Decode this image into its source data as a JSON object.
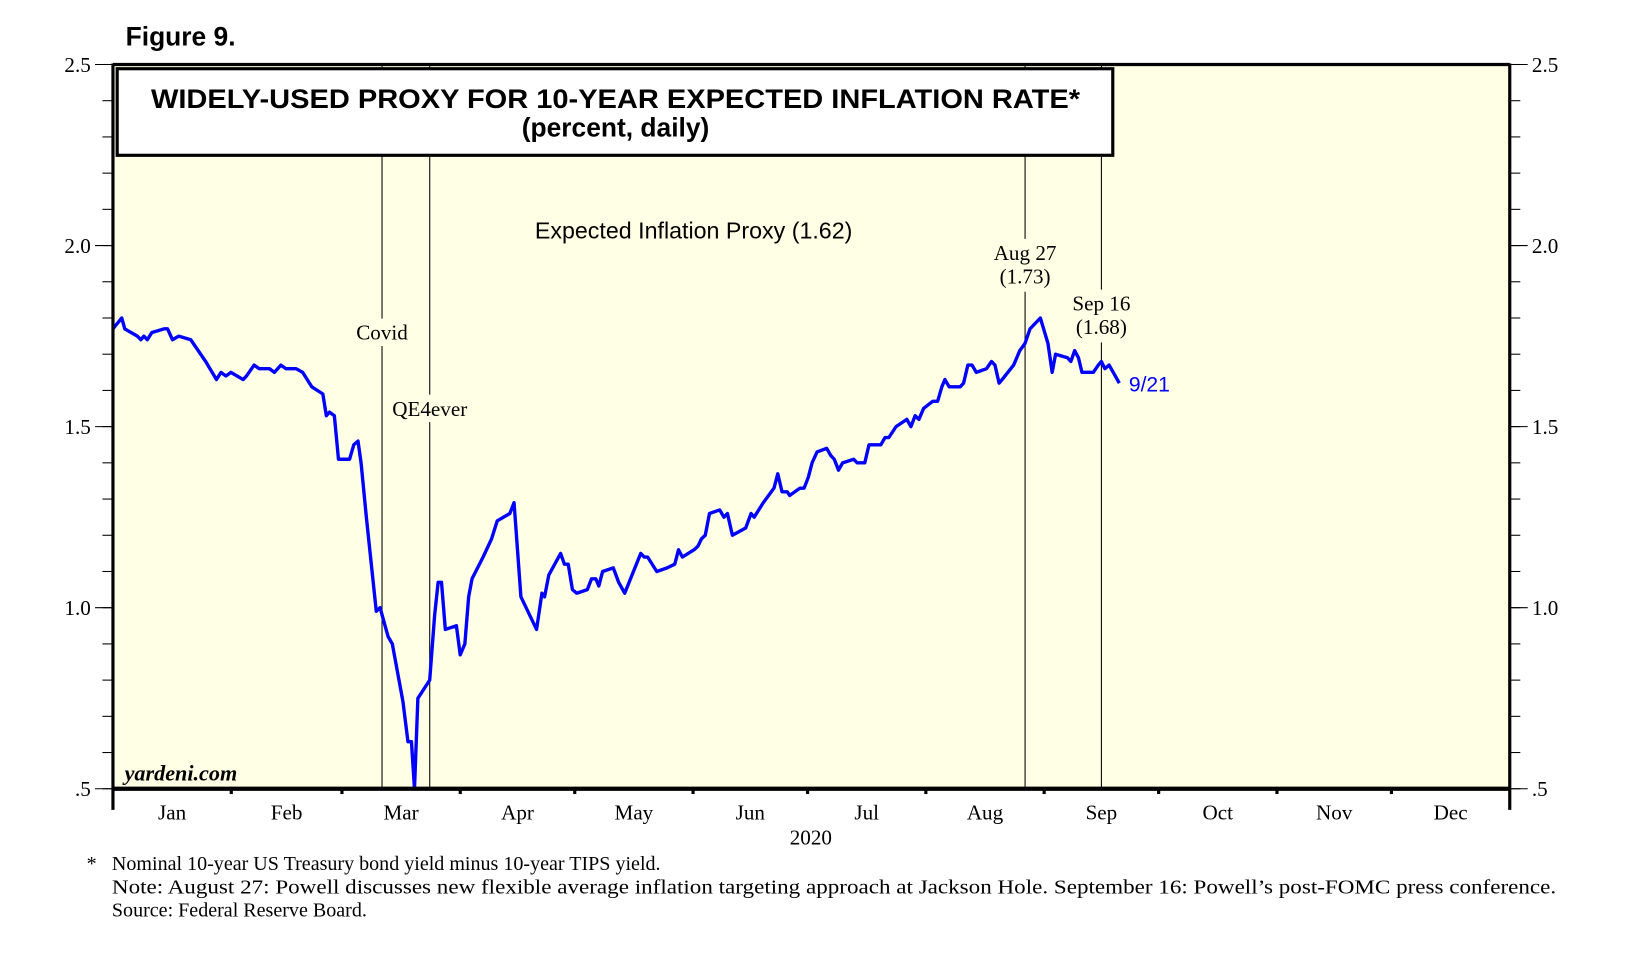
{
  "figure_label": "Figure 9.",
  "watermark": "yardeni.com",
  "chart_data": {
    "type": "line",
    "title": "WIDELY-USED PROXY FOR 10-YEAR EXPECTED INFLATION RATE*",
    "subtitle": "(percent, daily)",
    "xlabel": "2020",
    "ylabel": "",
    "x_unit": "day of year 2020 (0 = Jan 1)",
    "xlim": [
      0,
      366
    ],
    "ylim": [
      0.5,
      2.5
    ],
    "grid": false,
    "yticks": [
      {
        "value": 2.5,
        "label": "2.5"
      },
      {
        "value": 2.0,
        "label": "2.0"
      },
      {
        "value": 1.5,
        "label": "1.5"
      },
      {
        "value": 1.0,
        "label": "1.0"
      },
      {
        "value": 0.5,
        "label": ".5"
      }
    ],
    "yminor_step": 0.1,
    "months": [
      {
        "label": "Jan",
        "start": 0,
        "end": 31
      },
      {
        "label": "Feb",
        "start": 31,
        "end": 60
      },
      {
        "label": "Mar",
        "start": 60,
        "end": 91
      },
      {
        "label": "Apr",
        "start": 91,
        "end": 121
      },
      {
        "label": "May",
        "start": 121,
        "end": 152
      },
      {
        "label": "Jun",
        "start": 152,
        "end": 182
      },
      {
        "label": "Jul",
        "start": 182,
        "end": 213
      },
      {
        "label": "Aug",
        "start": 213,
        "end": 244
      },
      {
        "label": "Sep",
        "start": 244,
        "end": 274
      },
      {
        "label": "Oct",
        "start": 274,
        "end": 305
      },
      {
        "label": "Nov",
        "start": 305,
        "end": 335
      },
      {
        "label": "Dec",
        "start": 335,
        "end": 366
      }
    ],
    "series": [
      {
        "name": "Expected Inflation Proxy (1.62)",
        "color": "#0000FF",
        "end_label": "9/21",
        "points": [
          [
            0,
            1.77
          ],
          [
            2.3,
            1.8
          ],
          [
            3.1,
            1.77
          ],
          [
            6.4,
            1.75
          ],
          [
            7.3,
            1.74
          ],
          [
            8.1,
            1.75
          ],
          [
            9.0,
            1.74
          ],
          [
            10.2,
            1.76
          ],
          [
            13.4,
            1.77
          ],
          [
            14.3,
            1.77
          ],
          [
            15.6,
            1.74
          ],
          [
            17.2,
            1.75
          ],
          [
            20.4,
            1.74
          ],
          [
            24.3,
            1.68
          ],
          [
            27.1,
            1.63
          ],
          [
            28.3,
            1.65
          ],
          [
            29.6,
            1.64
          ],
          [
            30.9,
            1.65
          ],
          [
            34.1,
            1.63
          ],
          [
            35.0,
            1.64
          ],
          [
            37.0,
            1.67
          ],
          [
            38.3,
            1.66
          ],
          [
            41.0,
            1.66
          ],
          [
            42.3,
            1.65
          ],
          [
            44.0,
            1.67
          ],
          [
            45.3,
            1.66
          ],
          [
            48.0,
            1.66
          ],
          [
            49.7,
            1.65
          ],
          [
            52.1,
            1.61
          ],
          [
            55.0,
            1.59
          ],
          [
            55.9,
            1.53
          ],
          [
            56.7,
            1.54
          ],
          [
            58.0,
            1.53
          ],
          [
            59.1,
            1.41
          ],
          [
            62.0,
            1.41
          ],
          [
            63.1,
            1.45
          ],
          [
            64.2,
            1.46
          ],
          [
            65.0,
            1.4
          ],
          [
            66.4,
            1.25
          ],
          [
            69.0,
            0.99
          ],
          [
            70.0,
            1.0
          ],
          [
            72.1,
            0.92
          ],
          [
            73.2,
            0.9
          ],
          [
            76.0,
            0.74
          ],
          [
            77.3,
            0.63
          ],
          [
            78.2,
            0.63
          ],
          [
            79.0,
            0.5
          ],
          [
            79.9,
            0.75
          ],
          [
            83.0,
            0.8
          ],
          [
            84.3,
            0.98
          ],
          [
            85.2,
            1.07
          ],
          [
            86.1,
            1.07
          ],
          [
            87.1,
            0.94
          ],
          [
            90.0,
            0.95
          ],
          [
            91.0,
            0.87
          ],
          [
            92.2,
            0.9
          ],
          [
            93.2,
            1.03
          ],
          [
            94.1,
            1.08
          ],
          [
            97.0,
            1.14
          ],
          [
            99.2,
            1.19
          ],
          [
            100.7,
            1.24
          ],
          [
            104.0,
            1.26
          ],
          [
            105.1,
            1.29
          ],
          [
            106.9,
            1.03
          ],
          [
            111.0,
            0.94
          ],
          [
            112.4,
            1.04
          ],
          [
            113.1,
            1.03
          ],
          [
            114.2,
            1.09
          ],
          [
            117.3,
            1.15
          ],
          [
            118.3,
            1.12
          ],
          [
            119.3,
            1.12
          ],
          [
            120.4,
            1.05
          ],
          [
            121.5,
            1.04
          ],
          [
            124.3,
            1.05
          ],
          [
            125.4,
            1.08
          ],
          [
            126.5,
            1.08
          ],
          [
            127.3,
            1.06
          ],
          [
            128.3,
            1.1
          ],
          [
            131.1,
            1.11
          ],
          [
            132.5,
            1.07
          ],
          [
            134.1,
            1.04
          ],
          [
            138.3,
            1.15
          ],
          [
            139.2,
            1.14
          ],
          [
            140.1,
            1.14
          ],
          [
            142.5,
            1.1
          ],
          [
            145.2,
            1.11
          ],
          [
            147.2,
            1.12
          ],
          [
            148.2,
            1.16
          ],
          [
            149.2,
            1.14
          ],
          [
            152.3,
            1.16
          ],
          [
            153.3,
            1.17
          ],
          [
            154.2,
            1.19
          ],
          [
            155.2,
            1.2
          ],
          [
            156.3,
            1.26
          ],
          [
            159.0,
            1.27
          ],
          [
            160.1,
            1.25
          ],
          [
            161.0,
            1.26
          ],
          [
            162.3,
            1.2
          ],
          [
            165.8,
            1.22
          ],
          [
            167.2,
            1.26
          ],
          [
            168.0,
            1.25
          ],
          [
            170.4,
            1.29
          ],
          [
            173.2,
            1.33
          ],
          [
            174.2,
            1.37
          ],
          [
            175.3,
            1.32
          ],
          [
            176.7,
            1.32
          ],
          [
            177.3,
            1.31
          ],
          [
            180.0,
            1.33
          ],
          [
            181.1,
            1.33
          ],
          [
            182.2,
            1.36
          ],
          [
            183.2,
            1.4
          ],
          [
            184.5,
            1.43
          ],
          [
            187.0,
            1.44
          ],
          [
            188.1,
            1.42
          ],
          [
            189.0,
            1.41
          ],
          [
            190.1,
            1.38
          ],
          [
            191.2,
            1.4
          ],
          [
            194.1,
            1.41
          ],
          [
            195.0,
            1.4
          ],
          [
            197.0,
            1.4
          ],
          [
            198.1,
            1.45
          ],
          [
            201.2,
            1.45
          ],
          [
            202.3,
            1.47
          ],
          [
            203.3,
            1.47
          ],
          [
            205.2,
            1.5
          ],
          [
            208.0,
            1.52
          ],
          [
            209.1,
            1.5
          ],
          [
            210.2,
            1.53
          ],
          [
            211.2,
            1.52
          ],
          [
            212.4,
            1.55
          ],
          [
            214.8,
            1.57
          ],
          [
            216.1,
            1.57
          ],
          [
            217.2,
            1.61
          ],
          [
            218.0,
            1.63
          ],
          [
            219.1,
            1.61
          ],
          [
            222.0,
            1.61
          ],
          [
            222.9,
            1.62
          ],
          [
            224.0,
            1.67
          ],
          [
            225.1,
            1.67
          ],
          [
            226.2,
            1.65
          ],
          [
            228.9,
            1.66
          ],
          [
            230.2,
            1.68
          ],
          [
            231.1,
            1.67
          ],
          [
            232.2,
            1.62
          ],
          [
            233.0,
            1.63
          ],
          [
            236.0,
            1.67
          ],
          [
            237.6,
            1.71
          ],
          [
            239.0,
            1.73
          ],
          [
            240.3,
            1.77
          ],
          [
            243.0,
            1.8
          ],
          [
            245.0,
            1.73
          ],
          [
            246.1,
            1.65
          ],
          [
            247.0,
            1.7
          ],
          [
            250.1,
            1.69
          ],
          [
            251.0,
            1.68
          ],
          [
            252.0,
            1.71
          ],
          [
            253.0,
            1.69
          ],
          [
            253.9,
            1.65
          ],
          [
            256.9,
            1.65
          ],
          [
            258.2,
            1.67
          ],
          [
            259.0,
            1.68
          ],
          [
            259.9,
            1.66
          ],
          [
            261.0,
            1.67
          ],
          [
            263.7,
            1.62
          ]
        ]
      }
    ],
    "annotations": [
      {
        "label": "Covid",
        "day": 70.5,
        "label_value": 1.74
      },
      {
        "label": "QE4ever",
        "day": 83,
        "label_value": 1.53
      },
      {
        "label": "Aug 27",
        "sublabel": "(1.73)",
        "day": 239,
        "label_value": 1.96
      },
      {
        "label": "Sep 16",
        "sublabel": "(1.68)",
        "day": 259,
        "label_value": 1.82
      }
    ],
    "colors": {
      "plot_bg": "#FFFFE5",
      "line": "#0000FF"
    }
  },
  "footnotes": {
    "star": "*",
    "line1": "Nominal 10-year US Treasury bond yield minus 10-year TIPS yield.",
    "line2": "Note: August 27: Powell discusses new flexible average inflation targeting approach at Jackson Hole. September 16: Powell’s post-FOMC press conference.",
    "line3": "Source: Federal Reserve Board."
  }
}
